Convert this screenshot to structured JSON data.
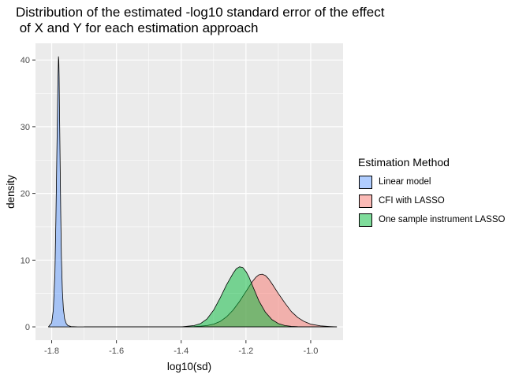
{
  "chart_data": {
    "type": "area",
    "title_lines": [
      "Distribution of the estimated -log10 standard error of the effect",
      " of X and Y for each estimation approach"
    ],
    "xlabel": "log10(sd)",
    "ylabel": "density",
    "xlim": [
      -1.85,
      -0.9
    ],
    "ylim": [
      -2.0,
      42.5
    ],
    "x_ticks": [
      -1.8,
      -1.6,
      -1.4,
      -1.2,
      -1.0
    ],
    "x_tick_labels": [
      "-1.8",
      "-1.6",
      "-1.4",
      "-1.2",
      "-1.0"
    ],
    "y_ticks": [
      0,
      10,
      20,
      30,
      40
    ],
    "y_tick_labels": [
      "0",
      "10",
      "20",
      "30",
      "40"
    ],
    "grid": true,
    "legend": {
      "title": "Estimation Method",
      "position": "right",
      "entries": [
        "Linear model",
        "CFI with LASSO",
        "One sample instrument LASSO"
      ]
    },
    "series": [
      {
        "name": "Linear model",
        "color": "#619cff",
        "x": [
          -1.81,
          -1.8,
          -1.795,
          -1.79,
          -1.787,
          -1.784,
          -1.781,
          -1.779,
          -1.778,
          -1.777,
          -1.776,
          -1.774,
          -1.772,
          -1.77,
          -1.767,
          -1.764,
          -1.76,
          -1.755,
          -1.75,
          -1.74,
          -1.72,
          -1.7,
          -1.6,
          -1.5,
          -1.4,
          -1.3,
          -1.2,
          -1.1,
          -1.0,
          -0.92
        ],
        "values": [
          0.0,
          0.6,
          2.5,
          8.0,
          16.0,
          26.0,
          36.0,
          40.5,
          40.0,
          37.5,
          33.0,
          25.0,
          17.0,
          10.5,
          5.5,
          2.8,
          1.2,
          0.5,
          0.2,
          0.05,
          0.0,
          0.0,
          0.0,
          0.0,
          0.0,
          0.0,
          0.0,
          0.0,
          0.0,
          0.0
        ]
      },
      {
        "name": "CFI with LASSO",
        "color": "#f8766d",
        "x": [
          -1.7,
          -1.4,
          -1.36,
          -1.34,
          -1.32,
          -1.3,
          -1.28,
          -1.26,
          -1.24,
          -1.22,
          -1.2,
          -1.18,
          -1.17,
          -1.16,
          -1.15,
          -1.14,
          -1.13,
          -1.12,
          -1.1,
          -1.08,
          -1.06,
          -1.04,
          -1.02,
          -1.0,
          -0.97,
          -0.94,
          -0.92
        ],
        "values": [
          0.0,
          0.0,
          0.05,
          0.1,
          0.2,
          0.4,
          0.8,
          1.5,
          2.5,
          3.8,
          5.3,
          6.8,
          7.4,
          7.8,
          7.9,
          7.7,
          7.2,
          6.5,
          5.0,
          3.6,
          2.3,
          1.4,
          0.8,
          0.4,
          0.15,
          0.05,
          0.0
        ]
      },
      {
        "name": "One sample instrument LASSO",
        "color": "#00ba38",
        "x": [
          -1.4,
          -1.36,
          -1.34,
          -1.32,
          -1.3,
          -1.28,
          -1.26,
          -1.24,
          -1.23,
          -1.22,
          -1.21,
          -1.2,
          -1.19,
          -1.18,
          -1.16,
          -1.14,
          -1.12,
          -1.1,
          -1.08,
          -1.06,
          -1.04,
          -1.02,
          -1.0,
          -0.97
        ],
        "values": [
          0.0,
          0.2,
          0.5,
          1.2,
          2.5,
          4.3,
          6.3,
          8.0,
          8.7,
          9.0,
          8.9,
          8.3,
          7.4,
          6.2,
          3.9,
          2.2,
          1.1,
          0.5,
          0.2,
          0.08,
          0.03,
          0.01,
          0.0,
          0.0
        ]
      }
    ]
  }
}
